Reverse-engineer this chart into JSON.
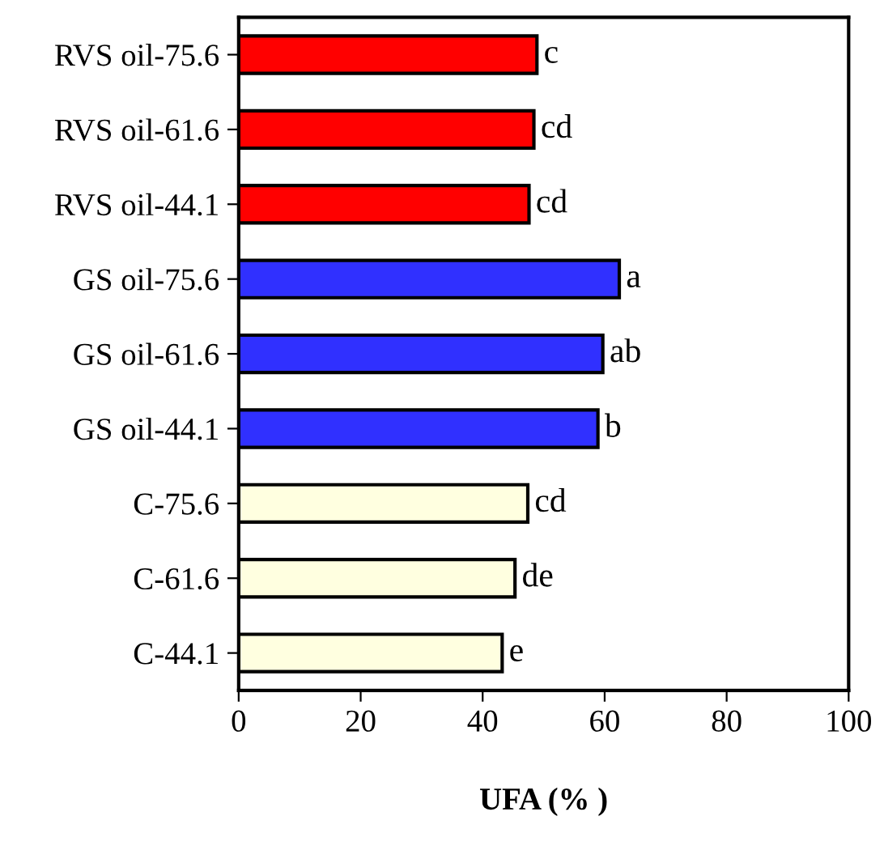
{
  "chart_data": {
    "type": "bar",
    "orientation": "horizontal",
    "xlabel": "UFA (% )",
    "categories": [
      "RVS oil-75.6",
      "RVS oil-61.6",
      "RVS oil-44.1",
      "GS oil-75.6",
      "GS oil-61.6",
      "GS oil-44.1",
      "C-75.6",
      "C-61.6",
      "C-44.1"
    ],
    "values": [
      48.9,
      48.4,
      47.6,
      62.4,
      59.7,
      58.9,
      47.4,
      45.3,
      43.2
    ],
    "colors": [
      "#ff0000",
      "#ff0000",
      "#ff0000",
      "#3030ff",
      "#3030ff",
      "#3030ff",
      "#ffffe0",
      "#ffffe0",
      "#ffffe0"
    ],
    "value_labels": [
      "c",
      "cd",
      "cd",
      "a",
      "ab",
      "b",
      "cd",
      "de",
      "e"
    ],
    "xlim": [
      0,
      100
    ],
    "xticks": [
      0,
      20,
      40,
      60,
      80,
      100
    ],
    "grid": false
  }
}
